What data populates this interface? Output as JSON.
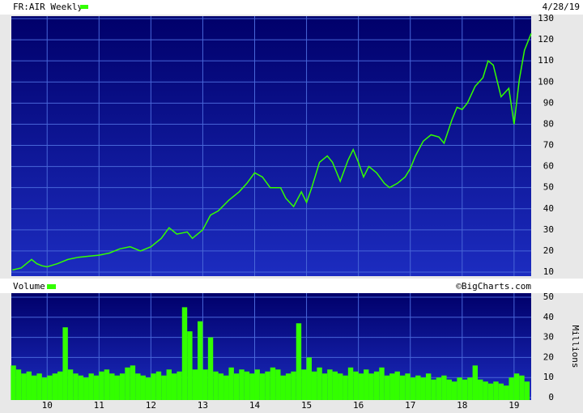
{
  "chart_data": [
    {
      "type": "line",
      "title": "FR:AIR Weekly",
      "date": "4/28/19",
      "color": "#33ff00",
      "x": [
        2009.33,
        2009.5,
        2009.6,
        2009.7,
        2009.8,
        2009.9,
        2010.0,
        2010.2,
        2010.4,
        2010.6,
        2010.8,
        2011.0,
        2011.2,
        2011.4,
        2011.6,
        2011.8,
        2012.0,
        2012.2,
        2012.35,
        2012.5,
        2012.7,
        2012.8,
        2013.0,
        2013.15,
        2013.3,
        2013.5,
        2013.7,
        2013.85,
        2014.0,
        2014.15,
        2014.3,
        2014.5,
        2014.6,
        2014.75,
        2014.9,
        2015.0,
        2015.1,
        2015.25,
        2015.4,
        2015.5,
        2015.65,
        2015.8,
        2015.9,
        2016.0,
        2016.1,
        2016.2,
        2016.35,
        2016.5,
        2016.6,
        2016.75,
        2016.9,
        2017.0,
        2017.1,
        2017.25,
        2017.4,
        2017.55,
        2017.65,
        2017.8,
        2017.9,
        2018.0,
        2018.1,
        2018.25,
        2018.4,
        2018.5,
        2018.6,
        2018.75,
        2018.9,
        2019.0,
        2019.1,
        2019.2,
        2019.33
      ],
      "values": [
        11,
        12,
        14,
        16,
        14,
        13,
        12.5,
        14,
        16,
        17,
        17.5,
        18,
        19,
        21,
        22,
        20,
        22,
        26,
        31,
        28,
        29,
        26,
        30,
        37,
        39,
        44,
        48,
        52,
        57,
        55,
        50,
        50,
        45,
        41,
        48,
        43,
        50,
        62,
        65,
        62,
        53,
        63,
        68,
        62,
        55,
        60,
        57,
        52,
        50,
        52,
        55,
        59,
        65,
        72,
        75,
        74,
        71,
        82,
        88,
        87,
        90,
        98,
        102,
        110,
        108,
        93,
        97,
        80,
        101,
        115,
        123
      ],
      "xlim": [
        2009.31,
        2019.33
      ],
      "xticks": [
        2010,
        2011,
        2012,
        2013,
        2014,
        2015,
        2016,
        2017,
        2018,
        2019
      ],
      "ylim": [
        10,
        130
      ],
      "yticks": [
        10,
        20,
        30,
        40,
        50,
        60,
        70,
        80,
        90,
        100,
        110,
        120,
        130
      ],
      "grid": true
    },
    {
      "type": "bar",
      "title": "Volume",
      "credit": "©BigCharts.com",
      "y_label": "Millions",
      "color": "#33ff00",
      "x": [
        2009.35,
        2009.45,
        2009.55,
        2009.65,
        2009.75,
        2009.85,
        2009.95,
        2010.05,
        2010.15,
        2010.25,
        2010.35,
        2010.45,
        2010.55,
        2010.65,
        2010.75,
        2010.85,
        2010.95,
        2011.05,
        2011.15,
        2011.25,
        2011.35,
        2011.45,
        2011.55,
        2011.65,
        2011.75,
        2011.85,
        2011.95,
        2012.05,
        2012.15,
        2012.25,
        2012.35,
        2012.45,
        2012.55,
        2012.65,
        2012.75,
        2012.85,
        2012.95,
        2013.05,
        2013.15,
        2013.25,
        2013.35,
        2013.45,
        2013.55,
        2013.65,
        2013.75,
        2013.85,
        2013.95,
        2014.05,
        2014.15,
        2014.25,
        2014.35,
        2014.45,
        2014.55,
        2014.65,
        2014.75,
        2014.85,
        2014.95,
        2015.05,
        2015.15,
        2015.25,
        2015.35,
        2015.45,
        2015.55,
        2015.65,
        2015.75,
        2015.85,
        2015.95,
        2016.05,
        2016.15,
        2016.25,
        2016.35,
        2016.45,
        2016.55,
        2016.65,
        2016.75,
        2016.85,
        2016.95,
        2017.05,
        2017.15,
        2017.25,
        2017.35,
        2017.45,
        2017.55,
        2017.65,
        2017.75,
        2017.85,
        2017.95,
        2018.05,
        2018.15,
        2018.25,
        2018.35,
        2018.45,
        2018.55,
        2018.65,
        2018.75,
        2018.85,
        2018.95,
        2019.05,
        2019.15,
        2019.25
      ],
      "values": [
        16,
        14,
        12,
        13,
        11,
        12,
        10,
        11,
        12,
        13,
        35,
        14,
        12,
        11,
        10,
        12,
        11,
        13,
        14,
        12,
        11,
        12,
        15,
        16,
        12,
        11,
        10,
        12,
        13,
        11,
        14,
        12,
        13,
        45,
        33,
        14,
        38,
        14,
        30,
        13,
        12,
        11,
        15,
        12,
        14,
        13,
        12,
        14,
        12,
        13,
        15,
        14,
        11,
        12,
        13,
        37,
        14,
        20,
        13,
        15,
        12,
        14,
        13,
        12,
        11,
        15,
        13,
        12,
        14,
        12,
        13,
        15,
        11,
        12,
        13,
        11,
        12,
        10,
        11,
        10,
        12,
        9,
        10,
        11,
        9,
        8,
        10,
        9,
        10,
        16,
        9,
        8,
        7,
        8,
        7,
        6,
        10,
        12,
        11,
        8
      ],
      "xlim": [
        2009.31,
        2019.33
      ],
      "xticks": [
        {
          "value": 2010,
          "label": "10"
        },
        {
          "value": 2011,
          "label": "11"
        },
        {
          "value": 2012,
          "label": "12"
        },
        {
          "value": 2013,
          "label": "13"
        },
        {
          "value": 2014,
          "label": "14"
        },
        {
          "value": 2015,
          "label": "15"
        },
        {
          "value": 2016,
          "label": "16"
        },
        {
          "value": 2017,
          "label": "17"
        },
        {
          "value": 2018,
          "label": "18"
        },
        {
          "value": 2019,
          "label": "19"
        }
      ],
      "ylim": [
        0,
        50
      ],
      "yticks": [
        0,
        10,
        20,
        30,
        40,
        50
      ],
      "grid": true
    }
  ]
}
